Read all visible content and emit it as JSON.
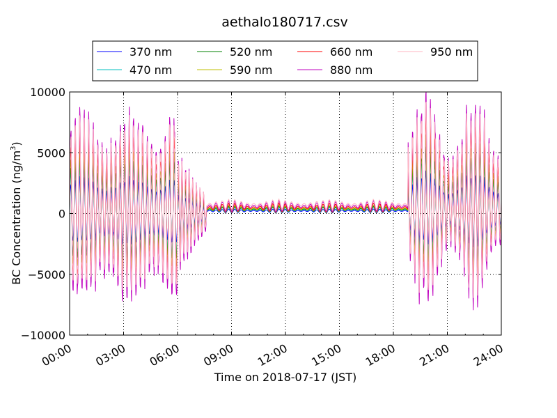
{
  "chart_data": {
    "type": "line",
    "title": "aethalo180717.csv",
    "xlabel": "Time on 2018-07-17 (JST)",
    "ylabel": "BC Concentration (ng/m",
    "ylabel_sup": "3",
    "ylabel_close": ")",
    "xlim_hours": [
      0,
      24
    ],
    "ylim": [
      -10000,
      10000
    ],
    "x_tick_labels": [
      "00:00",
      "03:00",
      "06:00",
      "09:00",
      "12:00",
      "15:00",
      "18:00",
      "21:00",
      "24:00"
    ],
    "y_tick_labels": [
      "10000",
      "5000",
      "0",
      "−5000",
      "−10000"
    ],
    "y_ticks": [
      10000,
      5000,
      0,
      -5000,
      -10000
    ],
    "grid": true,
    "legend_position": "top",
    "series": [
      {
        "name": "370 nm",
        "color": "#0000ff"
      },
      {
        "name": "470 nm",
        "color": "#00bfbf"
      },
      {
        "name": "520 nm",
        "color": "#008000"
      },
      {
        "name": "590 nm",
        "color": "#bfbf00"
      },
      {
        "name": "660 nm",
        "color": "#ff0000"
      },
      {
        "name": "880 nm",
        "color": "#bf00bf"
      },
      {
        "name": "950 nm",
        "color": "#ffb6c1"
      }
    ],
    "profile": {
      "description_hours": [
        {
          "from": 0.0,
          "to": 6.0,
          "amplitude": [
            6000,
            8500
          ],
          "period_h": 0.25,
          "baseline": 500
        },
        {
          "from": 6.0,
          "to": 7.6,
          "amplitude": [
            2000,
            5000
          ],
          "period_h": 0.2,
          "baseline": 0
        },
        {
          "from": 7.6,
          "to": 18.8,
          "amplitude": [
            100,
            500
          ],
          "period_h": 0.35,
          "baseline": 600
        },
        {
          "from": 18.8,
          "to": 24.0,
          "amplitude": [
            4000,
            9500
          ],
          "period_h": 0.25,
          "baseline": 1000
        }
      ]
    }
  }
}
